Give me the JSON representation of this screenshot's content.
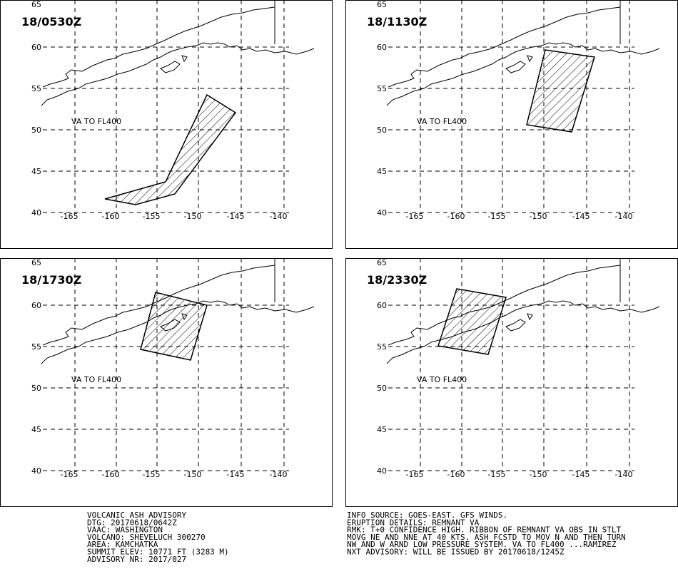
{
  "panels": [
    {
      "time": "18/0530Z",
      "level": "VA TO FL400"
    },
    {
      "time": "18/1130Z",
      "level": "VA TO FL400"
    },
    {
      "time": "18/1730Z",
      "level": "VA TO FL400"
    },
    {
      "time": "18/2330Z",
      "level": "VA TO FL400"
    }
  ],
  "lat_labels": [
    "65",
    "60",
    "55",
    "50",
    "45",
    "40"
  ],
  "lon_labels": [
    "-165",
    "-160",
    "-155",
    "-150",
    "-145",
    "-140"
  ],
  "advisory_left": [
    "VOLCANIC ASH ADVISORY",
    "DTG: 20170618/0642Z",
    "VAAC: WASHINGTON",
    "VOLCANO: SHEVELUCH 300270",
    "AREA: KAMCHATKA",
    "SUMMIT ELEV: 10771 FT (3283 M)",
    "ADVISORY NR: 2017/027"
  ],
  "advisory_right": [
    "INFO SOURCE: GOES-EAST. GFS WINDS.",
    "ERUPTION DETAILS: REMNANT VA",
    "RMK: T+0 CONFIDENCE HIGH. RIBBON OF REMNANT VA OBS IN STLT",
    "MOVG NE AND NNE AT 40 KTS. ASH FCSTD TO MOV N AND THEN TURN",
    "NW AND W ARND LOW PRESSURE SYSTEM. VA TO FL400 ...RAMIREZ",
    "NXT ADVISORY: WILL BE ISSUED BY 20170618/1245Z"
  ]
}
